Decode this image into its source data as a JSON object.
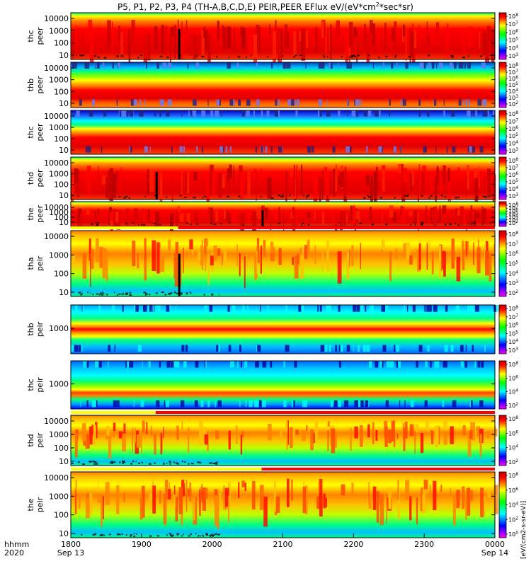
{
  "chart_data": {
    "type": "heatmap",
    "title": "P5, P1, P2, P3, P4 (TH-A,B,C,D,E) PEIR,PEER EFlux eV/(eV*cm",
    "title_sup": "2",
    "title_end": "*sec*sr)",
    "time_label": {
      "line1": "hhmm",
      "line2": "2020"
    },
    "x_ticks": [
      {
        "value": "1800",
        "date": "Sep 13"
      },
      {
        "value": "1900",
        "date": ""
      },
      {
        "value": "2000",
        "date": ""
      },
      {
        "value": "2100",
        "date": ""
      },
      {
        "value": "2200",
        "date": ""
      },
      {
        "value": "2300",
        "date": ""
      },
      {
        "value": "0000",
        "date": "Sep 14"
      }
    ],
    "x_range_hours": [
      18,
      24
    ],
    "colorbar_label": "[eV/(cm2-s-sr-eV)]",
    "colorbar_palette": [
      "#ff00ff",
      "#8000ff",
      "#0000ff",
      "#0080ff",
      "#00ffff",
      "#00ff80",
      "#00ff00",
      "#80ff00",
      "#ffff00",
      "#ff8000",
      "#ff0000",
      "#c00000"
    ],
    "panels": [
      {
        "name": "thc peer",
        "line1": "thc",
        "line2": "peer",
        "y_ticks": [
          "10000",
          "1000",
          "100",
          "10"
        ],
        "colorbar_ticks": [
          "10^8",
          "10^7",
          "10^6",
          "10^5",
          "10^4",
          "10^3"
        ],
        "style": "red",
        "gap_hour": 19.52,
        "status_bar": null
      },
      {
        "name": "thb peer",
        "line1": "thb",
        "line2": "peer",
        "y_ticks": [
          "10000",
          "1000",
          "100",
          "10"
        ],
        "colorbar_ticks": [
          "10^8",
          "10^7",
          "10^6",
          "10^5",
          "10^4",
          "10^3",
          "10^2"
        ],
        "style": "bands",
        "gap_hour": null,
        "status_bar": null
      },
      {
        "name": "thc peer 2",
        "line1": "thc",
        "line2": "peer",
        "y_ticks": [
          "10000",
          "1000",
          "100",
          "10"
        ],
        "colorbar_ticks": [
          "10^8",
          "10^7",
          "10^6",
          "10^5",
          "10^4",
          "10^3"
        ],
        "style": "bands2",
        "gap_hour": null,
        "status_bar": null
      },
      {
        "name": "thd peer",
        "line1": "thd",
        "line2": "peer",
        "y_ticks": [
          "10000",
          "1000",
          "100",
          "10"
        ],
        "colorbar_ticks": [
          "10^8",
          "10^7",
          "10^6",
          "10^5",
          "10^4",
          "10^3"
        ],
        "style": "red",
        "gap_hour": 19.2,
        "status_bar": null
      },
      {
        "name": "the peer",
        "line1": "the",
        "line2": "peer",
        "y_ticks": [
          "10000",
          "1000",
          "100",
          "10"
        ],
        "colorbar_ticks": [
          "10^8",
          "10^7",
          "10^6",
          "10^5",
          "10^4",
          "10^3",
          "10^2"
        ],
        "style": "red",
        "gap_hour": 20.7,
        "status_bar": null
      },
      {
        "name": "tha peir",
        "line1": "tha",
        "line2": "peir",
        "y_ticks": [
          "10000",
          "1000",
          "100",
          "10"
        ],
        "colorbar_ticks": [
          "10^8",
          "10^7",
          "10^6",
          "10^5",
          "10^4",
          "10^3",
          "10^2"
        ],
        "style": "ion",
        "gap_hour": 19.52,
        "status_bar": {
          "red_from_hour": 19.52
        }
      },
      {
        "name": "thb peir",
        "line1": "thb",
        "line2": "peir",
        "y_ticks": [
          "1000"
        ],
        "colorbar_ticks": [
          "10^8",
          "10^7",
          "10^6",
          "10^5",
          "10^4",
          "10^3"
        ],
        "style": "ionbands",
        "gap_hour": null,
        "status_bar": null
      },
      {
        "name": "thc peir",
        "line1": "thc",
        "line2": "peir",
        "y_ticks": [
          "1000"
        ],
        "colorbar_ticks": [
          "10^8",
          "10^6",
          "10^4",
          "10^2"
        ],
        "style": "ionbands2",
        "gap_hour": null,
        "status_bar": null
      },
      {
        "name": "thd peir",
        "line1": "thd",
        "line2": "peir",
        "y_ticks": [
          "10000",
          "1000",
          "100",
          "10"
        ],
        "colorbar_ticks": [
          "10^8",
          "10^6",
          "10^4",
          "10^2"
        ],
        "style": "ion",
        "gap_hour": null,
        "status_bar": {
          "red_from_hour": 19.2
        }
      },
      {
        "name": "the peir",
        "line1": "the",
        "line2": "peir",
        "y_ticks": [
          "10000",
          "1000",
          "100",
          "10"
        ],
        "colorbar_ticks": [
          "10^8",
          "10^6",
          "10^4",
          "10^2",
          "10^0"
        ],
        "style": "ion",
        "gap_hour": null,
        "status_bar": {
          "red_from_hour": 20.7
        }
      }
    ]
  }
}
